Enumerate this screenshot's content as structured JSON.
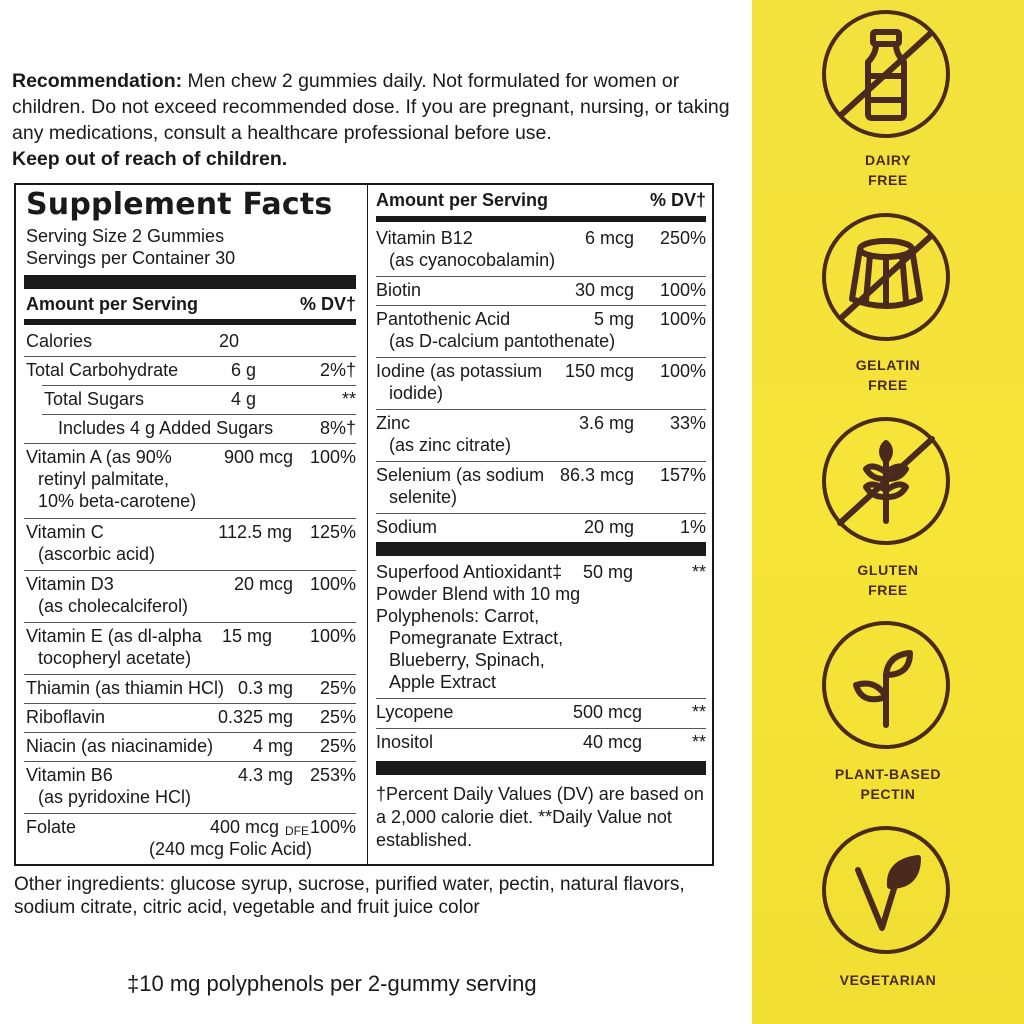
{
  "recommendation": {
    "label": "Recommendation:",
    "text": " Men chew 2 gummies daily. Not formulated for women or children. Do not exceed recommended dose. If you are pregnant, nursing, or taking any medications, consult a healthcare professional before use.",
    "warning": "Keep out of reach of children."
  },
  "facts": {
    "title": "Supplement Facts",
    "serving_size": "Serving Size 2 Gummies",
    "servings_per_container": "Servings per Container 30",
    "amount_header": "Amount per Serving",
    "dv_header": "% DV†",
    "left_rows": [
      {
        "l1": "Calories",
        "l2": "",
        "amt": "20",
        "dv": ""
      },
      {
        "l1": "Total Carbohydrate",
        "l2": "",
        "amt": "6 g",
        "dv": "2%†"
      },
      {
        "l1": "Total Sugars",
        "l2": "",
        "amt": "4 g",
        "dv": "**"
      },
      {
        "l1": "Includes 4 g Added Sugars",
        "l2": "",
        "amt": "",
        "dv": "8%†"
      },
      {
        "l1": "Vitamin A (as 90%",
        "l2": "retinyl palmitate,",
        "l3": "10% beta-carotene)",
        "amt": "900 mcg",
        "dv": "100%"
      },
      {
        "l1": "Vitamin C",
        "l2": "(ascorbic acid)",
        "amt": "112.5 mg",
        "dv": "125%"
      },
      {
        "l1": "Vitamin D3",
        "l2": "(as cholecalciferol)",
        "amt": "20 mcg",
        "dv": "100%"
      },
      {
        "l1": "Vitamin E (as dl-alpha",
        "l2": "tocopheryl acetate)",
        "amt": "15 mg",
        "dv": "100%"
      },
      {
        "l1": "Thiamin (as thiamin HCl)",
        "l2": "",
        "amt": "0.3 mg",
        "dv": "25%"
      },
      {
        "l1": "Riboflavin",
        "l2": "",
        "amt": "0.325 mg",
        "dv": "25%"
      },
      {
        "l1": "Niacin (as niacinamide)",
        "l2": "",
        "amt": "4 mg",
        "dv": "25%"
      },
      {
        "l1": "Vitamin B6",
        "l2": "(as pyridoxine HCl)",
        "amt": "4.3 mg",
        "dv": "253%"
      },
      {
        "l1": "Folate",
        "l2": "(240 mcg Folic Acid)",
        "amt": "400 mcg",
        "amt_suffix": "DFE",
        "dv": "100%"
      }
    ],
    "right_rows": [
      {
        "l1": "Vitamin B12",
        "l2": "(as cyanocobalamin)",
        "amt": "6 mcg",
        "dv": "250%"
      },
      {
        "l1": "Biotin",
        "l2": "",
        "amt": "30 mcg",
        "dv": "100%"
      },
      {
        "l1": "Pantothenic Acid",
        "l2": "(as D-calcium pantothenate)",
        "amt": "5 mg",
        "dv": "100%"
      },
      {
        "l1": "Iodine (as potassium",
        "l2": "iodide)",
        "amt": "150 mcg",
        "dv": "100%"
      },
      {
        "l1": "Zinc",
        "l2": "(as zinc citrate)",
        "amt": "3.6 mg",
        "dv": "33%"
      },
      {
        "l1": "Selenium (as sodium",
        "l2": "selenite)",
        "amt": "86.3 mcg",
        "dv": "157%"
      },
      {
        "l1": "Sodium",
        "l2": "",
        "amt": "20 mg",
        "dv": "1%"
      }
    ],
    "blend": {
      "lines": [
        "Superfood Antioxidant‡",
        "Powder Blend with 10 mg",
        "Polyphenols: Carrot,",
        "Pomegranate Extract,",
        "Blueberry, Spinach,",
        "Apple Extract"
      ],
      "amt": "50 mg",
      "dv": "**"
    },
    "extra_rows": [
      {
        "l1": "Lycopene",
        "amt": "500 mcg",
        "dv": "**"
      },
      {
        "l1": "Inositol",
        "amt": "40 mcg",
        "dv": "**"
      }
    ],
    "footnote": [
      "†Percent Daily Values (DV) are based on",
      "a 2,000 calorie diet. **Daily Value not",
      "established."
    ]
  },
  "other_ingredients": "Other ingredients: glucose syrup, sucrose, purified water, pectin, natural flavors, sodium citrate, citric acid, vegetable and fruit juice color",
  "polyphenol_note": "‡10 mg polyphenols per 2-gummy serving",
  "badges": [
    {
      "icon": "dairy-free-icon",
      "label": "DAIRY\nFREE"
    },
    {
      "icon": "gelatin-free-icon",
      "label": "GELATIN\nFREE"
    },
    {
      "icon": "gluten-free-icon",
      "label": "GLUTEN\nFREE"
    },
    {
      "icon": "plant-pectin-icon",
      "label": "PLANT-BASED\nPECTIN"
    },
    {
      "icon": "vegetarian-icon",
      "label": "VEGETARIAN"
    }
  ],
  "colors": {
    "panel": "#f3e13e",
    "icon": "#4a2a1c",
    "text": "#1a1a1a"
  }
}
